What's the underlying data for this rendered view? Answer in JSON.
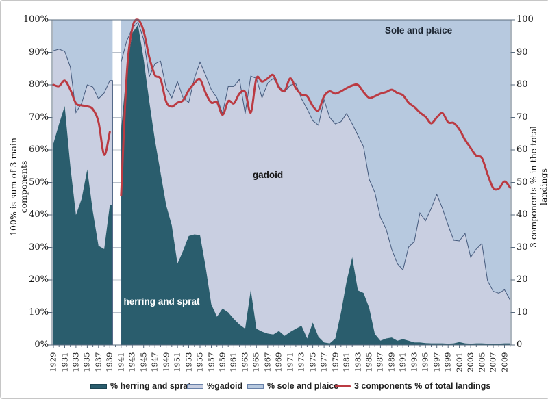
{
  "figure": {
    "y_axis_left": {
      "title": "100% is sum of 3 main components",
      "ticks": [
        "0%",
        "10%",
        "20%",
        "30%",
        "40%",
        "50%",
        "60%",
        "70%",
        "80%",
        "90%",
        "100%"
      ]
    },
    "y_axis_right": {
      "title": "3 components % in the total landings",
      "ticks": [
        "0",
        "10",
        "20",
        "30",
        "40",
        "50",
        "60",
        "70",
        "80",
        "90",
        "100"
      ]
    },
    "area_labels": {
      "sole": "Sole and plaice",
      "gadoid": "gadoid",
      "herring": "herring and sprat"
    },
    "colors": {
      "herring_fill": "#2a5d6d",
      "gadoid_fill": "#c9cfe1",
      "sole_fill": "#b7c9df",
      "boundary_line": "#44597c",
      "red_line": "#bb3a42",
      "axis": "#5a6b7e",
      "gridline": "#b9c0ca",
      "text": "#1a1a1a"
    }
  },
  "chart_data": {
    "type": "area",
    "stacked": true,
    "note": "Stacked shares sum to 100% on left axis; red line on right axis. No data for 1940 (gap band).",
    "xlim": [
      1929,
      2010
    ],
    "ylim_left": [
      0,
      100
    ],
    "ylim_right": [
      0,
      100
    ],
    "gap_years": [
      1940
    ],
    "legend_position": "bottom",
    "x": [
      1929,
      1930,
      1931,
      1932,
      1933,
      1934,
      1935,
      1936,
      1937,
      1938,
      1939,
      1940,
      1941,
      1942,
      1943,
      1944,
      1945,
      1946,
      1947,
      1948,
      1949,
      1950,
      1951,
      1952,
      1953,
      1954,
      1955,
      1956,
      1957,
      1958,
      1959,
      1960,
      1961,
      1962,
      1963,
      1964,
      1965,
      1966,
      1967,
      1968,
      1969,
      1970,
      1971,
      1972,
      1973,
      1974,
      1975,
      1976,
      1977,
      1978,
      1979,
      1980,
      1981,
      1982,
      1983,
      1984,
      1985,
      1986,
      1987,
      1988,
      1989,
      1990,
      1991,
      1992,
      1993,
      1994,
      1995,
      1996,
      1997,
      1998,
      1999,
      2000,
      2001,
      2002,
      2003,
      2004,
      2005,
      2006,
      2007,
      2008,
      2009,
      2010
    ],
    "x_tick_labels": [
      "1929",
      "1931",
      "1933",
      "1935",
      "1937",
      "1939",
      "1941",
      "1943",
      "1945",
      "1947",
      "1949",
      "1951",
      "1953",
      "1955",
      "1957",
      "1959",
      "1961",
      "1963",
      "1965",
      "1967",
      "1969",
      "1971",
      "1973",
      "1975",
      "1977",
      "1979",
      "1981",
      "1983",
      "1985",
      "1987",
      "1989",
      "1991",
      "1993",
      "1995",
      "1997",
      "1999",
      "2001",
      "2003",
      "2005",
      "2007",
      "2009"
    ],
    "series": [
      {
        "name": "% herring and sprat",
        "type": "area",
        "axis": "left",
        "values": [
          62,
          68,
          73.5,
          55,
          40,
          45,
          54,
          41,
          30.5,
          29.5,
          43,
          null,
          66,
          85,
          96,
          98.5,
          88,
          75,
          63,
          53,
          43,
          36.8,
          25,
          29,
          33.5,
          34,
          33.8,
          24,
          12.5,
          8.7,
          11.2,
          10,
          8,
          6.3,
          5,
          17,
          5,
          4.1,
          3.5,
          3.2,
          4.3,
          2.8,
          4,
          5,
          5.9,
          2,
          6.9,
          2.5,
          0.8,
          0.5,
          2,
          10,
          19.6,
          27,
          16.8,
          16,
          11.5,
          3.4,
          1.3,
          2,
          2.3,
          1.3,
          1.8,
          1.3,
          0.8,
          0.8,
          0.6,
          0.5,
          0.5,
          0.5,
          0.4,
          0.5,
          0.9,
          0.5,
          0.4,
          0.5,
          0.5,
          0.4,
          0.4,
          0.4,
          0.5,
          0.5
        ]
      },
      {
        "name": "%gadoid",
        "type": "area",
        "axis": "left",
        "values": [
          28.5,
          23,
          16.8,
          30.5,
          31.5,
          29.3,
          26,
          38.3,
          45.2,
          48,
          38.3,
          null,
          21,
          8.5,
          1.5,
          0.8,
          6,
          7.5,
          23.5,
          34.3,
          36,
          39.2,
          56,
          47,
          41,
          48,
          53.2,
          59,
          66,
          67.3,
          60,
          69.5,
          71.5,
          75.4,
          66.2,
          65.7,
          77,
          71.9,
          77,
          78.8,
          75.3,
          75,
          75.9,
          75.3,
          69.8,
          70.6,
          62.1,
          65.1,
          74.6,
          69.5,
          66,
          58.7,
          51.6,
          41,
          47.7,
          45,
          39.5,
          43.5,
          37.9,
          33.7,
          27.1,
          23.7,
          21.3,
          28.8,
          31,
          39.8,
          37.6,
          41.5,
          45.8,
          41.5,
          36.4,
          31.7,
          31.1,
          33.8,
          26.6,
          29,
          30.7,
          19.3,
          16.1,
          15.5,
          16.5,
          13.3
        ]
      },
      {
        "name": "% sole and plaice",
        "type": "area",
        "axis": "left",
        "values": [
          9.5,
          9,
          9.7,
          14.5,
          28.5,
          25.7,
          20,
          20.7,
          24.3,
          22.5,
          18.7,
          null,
          13,
          6.5,
          2.5,
          0.7,
          6,
          17.5,
          13.5,
          12.7,
          21,
          24,
          19,
          24,
          25.5,
          18,
          13,
          17,
          21.5,
          24,
          28.8,
          20.5,
          20.5,
          18.3,
          28.8,
          17.3,
          18,
          24,
          19.5,
          18,
          20.4,
          22.2,
          20.1,
          19.7,
          24.3,
          27.4,
          31,
          32.4,
          24.6,
          30,
          32,
          31.3,
          28.8,
          32,
          35.5,
          39,
          49,
          53.1,
          60.8,
          64.3,
          70.6,
          75,
          76.9,
          69.9,
          68.2,
          59.4,
          61.8,
          58,
          53.7,
          58,
          63.2,
          67.8,
          68,
          65.7,
          73,
          70.5,
          68.8,
          80.3,
          83.5,
          84.1,
          83,
          86.2
        ]
      },
      {
        "name": "3 components % of total landings",
        "type": "line",
        "axis": "right",
        "values": [
          80,
          79.6,
          81.3,
          78.5,
          74.3,
          73.7,
          73.4,
          72.5,
          68.6,
          58.5,
          65.5,
          null,
          46,
          83,
          97.5,
          100,
          96.5,
          88.5,
          83,
          81.8,
          74.8,
          73.3,
          74.5,
          75.2,
          78.3,
          80.5,
          81.7,
          77.5,
          74.5,
          74.7,
          70.8,
          75,
          74.3,
          77.3,
          77.8,
          71.5,
          82,
          81,
          82,
          83,
          79.2,
          78.2,
          82,
          79,
          77,
          76.5,
          73.5,
          72.2,
          76.5,
          78,
          77.3,
          78,
          79,
          79.8,
          80,
          77.8,
          76,
          76.5,
          77.3,
          77.8,
          78.5,
          77.5,
          76.8,
          74.5,
          73.2,
          71.5,
          70.2,
          68.2,
          70,
          71.3,
          68.5,
          68.3,
          66.3,
          63.1,
          60.6,
          58.2,
          57.5,
          52.5,
          48.3,
          48.1,
          50.3,
          48.4
        ]
      }
    ]
  }
}
